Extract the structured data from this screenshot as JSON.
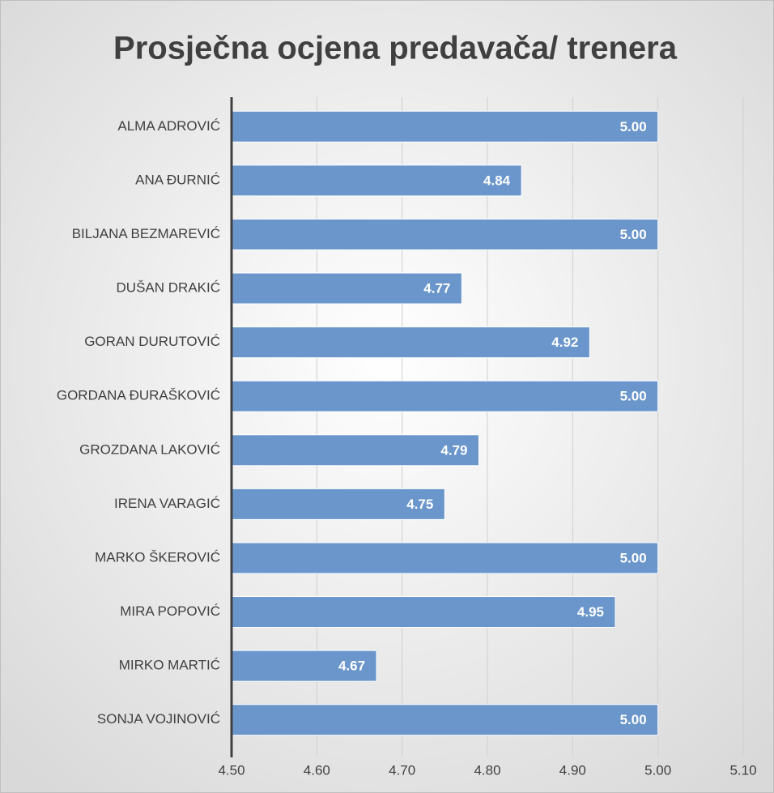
{
  "chart_data": {
    "type": "bar",
    "orientation": "horizontal",
    "title": "Prosječna ocjena predavača/ trenera",
    "categories": [
      "ALMA ADROVIĆ",
      "ANA ĐURNIĆ",
      "BILJANA BEZMAREVIĆ",
      "DUŠAN DRAKIĆ",
      "GORAN DURUTOVIĆ",
      "GORDANA ĐURAŠKOVIĆ",
      "GROZDANA LAKOVIĆ",
      "IRENA VARAGIĆ",
      "MARKO ŠKEROVIĆ",
      "MIRA POPOVIĆ",
      "MIRKO MARTIĆ",
      "SONJA VOJINOVIĆ"
    ],
    "values": [
      5,
      4.84,
      5,
      4.77,
      4.92,
      5,
      4.79,
      4.75,
      5,
      4.95,
      4.67,
      5
    ],
    "value_labels": [
      "5.00",
      "4.84",
      "5.00",
      "4.77",
      "4.92",
      "5.00",
      "4.79",
      "4.75",
      "5.00",
      "4.95",
      "4.67",
      "5.00"
    ],
    "color": "#6a96cb",
    "xlim": [
      4.5,
      5.1
    ],
    "xticks": [
      {
        "value": 4.5,
        "label": "4.50"
      },
      {
        "value": 4.6,
        "label": "4.60"
      },
      {
        "value": 4.7,
        "label": "4.70"
      },
      {
        "value": 4.8,
        "label": "4.80"
      },
      {
        "value": 4.9,
        "label": "4.90"
      },
      {
        "value": 5.0,
        "label": "5.00"
      },
      {
        "value": 5.1,
        "label": "5.10"
      }
    ],
    "grid": true
  }
}
